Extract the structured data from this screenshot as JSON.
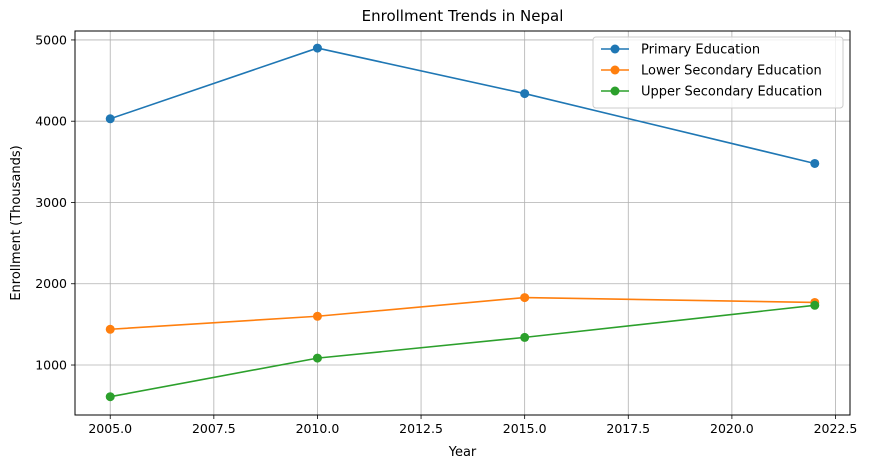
{
  "chart_data": {
    "type": "line",
    "title": "Enrollment Trends in Nepal",
    "xlabel": "Year",
    "ylabel": "Enrollment (Thousands)",
    "x": [
      2005,
      2010,
      2015,
      2022
    ],
    "xlim": [
      2004.15,
      2022.85
    ],
    "ylim": [
      385,
      5110
    ],
    "xticks": [
      2005,
      2007.5,
      2010,
      2012.5,
      2015,
      2017.5,
      2020,
      2022.5
    ],
    "xtick_labels": [
      "2005.0",
      "2007.5",
      "2010.0",
      "2012.5",
      "2015.0",
      "2017.5",
      "2020.0",
      "2022.5"
    ],
    "yticks": [
      1000,
      2000,
      3000,
      4000,
      5000
    ],
    "ytick_labels": [
      "1000",
      "2000",
      "3000",
      "4000",
      "5000"
    ],
    "grid": true,
    "legend_position": "top-right",
    "series": [
      {
        "name": "Primary Education",
        "color": "#1f77b4",
        "values": [
          4030,
          4900,
          4340,
          3480
        ]
      },
      {
        "name": "Lower Secondary Education",
        "color": "#ff7f0e",
        "values": [
          1440,
          1600,
          1830,
          1770
        ]
      },
      {
        "name": "Upper Secondary Education",
        "color": "#2ca02c",
        "values": [
          610,
          1085,
          1340,
          1735
        ]
      }
    ]
  }
}
